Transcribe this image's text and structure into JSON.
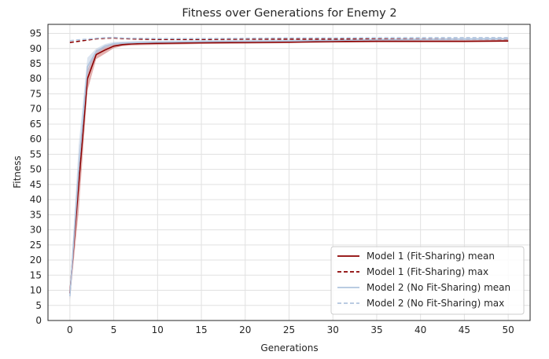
{
  "chart_data": {
    "type": "line",
    "title": "Fitness over Generations for Enemy 2",
    "xlabel": "Generations",
    "ylabel": "Fitness",
    "xlim": [
      -2.5,
      52.5
    ],
    "ylim": [
      0,
      98
    ],
    "xticks": [
      0,
      5,
      10,
      15,
      20,
      25,
      30,
      35,
      40,
      45,
      50
    ],
    "yticks": [
      0,
      5,
      10,
      15,
      20,
      25,
      30,
      35,
      40,
      45,
      50,
      55,
      60,
      65,
      70,
      75,
      80,
      85,
      90,
      95
    ],
    "grid": true,
    "legend_position": "bottom-right",
    "series": [
      {
        "name": "Model 1 (Fit-Sharing) mean",
        "color": "#8b0000",
        "dash": "solid",
        "band": true,
        "band_color": "#c0504d",
        "x": [
          0,
          1,
          2,
          3,
          4,
          5,
          6,
          7,
          8,
          10,
          15,
          20,
          25,
          30,
          35,
          40,
          45,
          50
        ],
        "y": [
          9,
          45,
          80,
          88,
          89.5,
          90.8,
          91.3,
          91.5,
          91.6,
          91.7,
          91.9,
          92.0,
          92.1,
          92.3,
          92.4,
          92.4,
          92.4,
          92.5
        ],
        "lower": [
          7,
          36,
          76,
          86.5,
          88.3,
          90.1,
          90.8,
          91.0,
          91.1,
          91.2,
          91.5,
          91.6,
          91.8,
          92.0,
          92.1,
          92.1,
          92.1,
          92.2
        ],
        "upper": [
          11,
          53,
          83,
          89.5,
          90.5,
          91.5,
          91.8,
          91.9,
          92.0,
          92.1,
          92.3,
          92.4,
          92.4,
          92.6,
          92.7,
          92.7,
          92.7,
          92.8
        ]
      },
      {
        "name": "Model 1 (Fit-Sharing) max",
        "color": "#8b0000",
        "dash": "dashed",
        "band": false,
        "x": [
          0,
          1,
          2,
          3,
          4,
          5,
          6,
          7,
          8,
          10,
          15,
          20,
          25,
          30,
          35,
          40,
          45,
          50
        ],
        "y": [
          92.0,
          92.4,
          92.8,
          93.2,
          93.4,
          93.5,
          93.3,
          93.2,
          93.1,
          93.0,
          93.0,
          93.1,
          93.1,
          93.1,
          93.1,
          93.1,
          93.1,
          93.1
        ]
      },
      {
        "name": "Model 2 (No Fit-Sharing) mean",
        "color": "#b0c4de",
        "dash": "solid",
        "band": true,
        "band_color": "#b0c4de",
        "x": [
          0,
          1,
          2,
          3,
          4,
          5,
          6,
          7,
          8,
          10,
          15,
          20,
          25,
          30,
          35,
          40,
          45,
          50
        ],
        "y": [
          8,
          50,
          84,
          89,
          90.8,
          91.6,
          91.8,
          91.9,
          92.0,
          92.1,
          92.3,
          92.4,
          92.5,
          92.7,
          92.9,
          93.0,
          93.1,
          93.2
        ],
        "lower": [
          6,
          42,
          81,
          88,
          90.0,
          91.0,
          91.3,
          91.4,
          91.5,
          91.6,
          91.8,
          92.0,
          92.1,
          92.3,
          92.5,
          92.6,
          92.7,
          92.8
        ],
        "upper": [
          10,
          58,
          87,
          90,
          91.5,
          92.2,
          92.3,
          92.4,
          92.5,
          92.6,
          92.8,
          92.9,
          93.0,
          93.1,
          93.3,
          93.4,
          93.5,
          93.6
        ]
      },
      {
        "name": "Model 2 (No Fit-Sharing) max",
        "color": "#b0c4de",
        "dash": "dashed",
        "band": false,
        "x": [
          0,
          1,
          2,
          3,
          4,
          5,
          6,
          7,
          8,
          10,
          15,
          20,
          25,
          30,
          35,
          40,
          45,
          50
        ],
        "y": [
          92.6,
          92.9,
          93.1,
          93.4,
          93.6,
          93.7,
          93.5,
          93.4,
          93.4,
          93.3,
          93.3,
          93.4,
          93.5,
          93.5,
          93.6,
          93.6,
          93.6,
          93.6
        ]
      }
    ]
  }
}
